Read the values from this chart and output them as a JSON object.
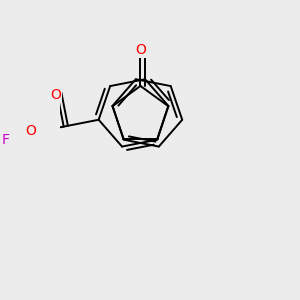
{
  "bg_color": "#ececec",
  "bond_color": "#000000",
  "bond_lw": 1.4,
  "atom_colors": {
    "O": "#ff0000",
    "F": "#cc00cc"
  },
  "font_size": 10,
  "scale": 0.42
}
